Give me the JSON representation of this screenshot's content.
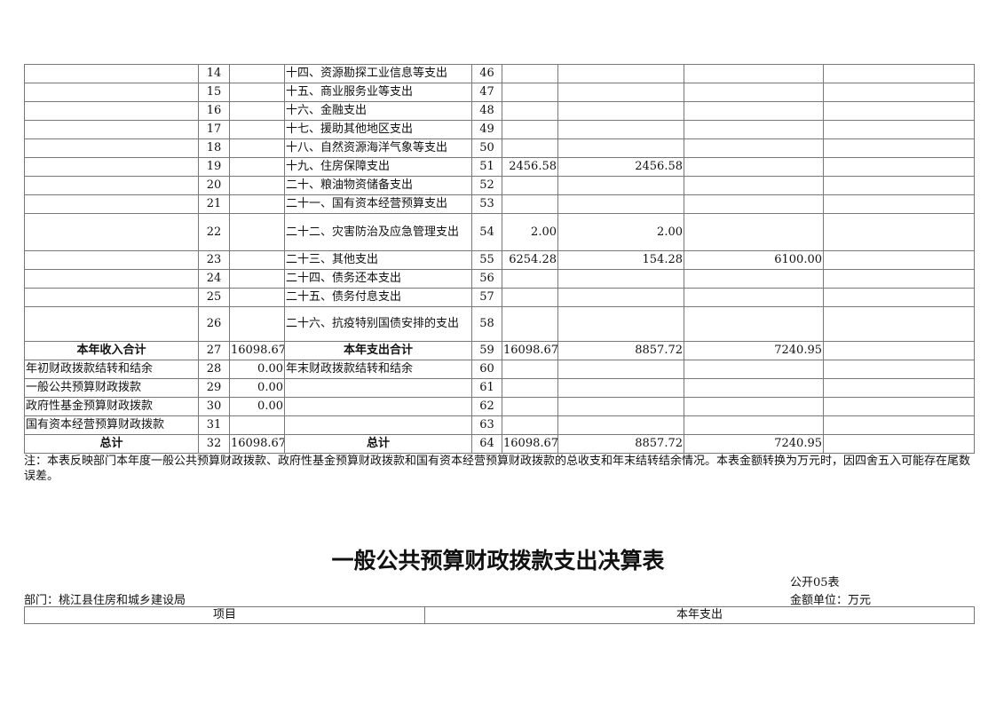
{
  "table1": {
    "rows": [
      {
        "a": "",
        "n1": "14",
        "v1": "",
        "b": "十四、资源勘探工业信息等支出",
        "n2": "46",
        "t": "",
        "g": "",
        "f": "",
        "x": ""
      },
      {
        "a": "",
        "n1": "15",
        "v1": "",
        "b": "十五、商业服务业等支出",
        "n2": "47",
        "t": "",
        "g": "",
        "f": "",
        "x": ""
      },
      {
        "a": "",
        "n1": "16",
        "v1": "",
        "b": "十六、金融支出",
        "n2": "48",
        "t": "",
        "g": "",
        "f": "",
        "x": ""
      },
      {
        "a": "",
        "n1": "17",
        "v1": "",
        "b": "十七、援助其他地区支出",
        "n2": "49",
        "t": "",
        "g": "",
        "f": "",
        "x": ""
      },
      {
        "a": "",
        "n1": "18",
        "v1": "",
        "b": "十八、自然资源海洋气象等支出",
        "n2": "50",
        "t": "",
        "g": "",
        "f": "",
        "x": ""
      },
      {
        "a": "",
        "n1": "19",
        "v1": "",
        "b": "十九、住房保障支出",
        "n2": "51",
        "t": "2456.58",
        "g": "2456.58",
        "f": "",
        "x": ""
      },
      {
        "a": "",
        "n1": "20",
        "v1": "",
        "b": "二十、粮油物资储备支出",
        "n2": "52",
        "t": "",
        "g": "",
        "f": "",
        "x": ""
      },
      {
        "a": "",
        "n1": "21",
        "v1": "",
        "b": "二十一、国有资本经营预算支出",
        "n2": "53",
        "t": "",
        "g": "",
        "f": "",
        "x": ""
      },
      {
        "a": "",
        "n1": "22",
        "v1": "",
        "b": "二十二、灾害防治及应急管理支出",
        "n2": "54",
        "t": "2.00",
        "g": "2.00",
        "f": "",
        "x": "",
        "tall": 42
      },
      {
        "a": "",
        "n1": "23",
        "v1": "",
        "b": "二十三、其他支出",
        "n2": "55",
        "t": "6254.28",
        "g": "154.28",
        "f": "6100.00",
        "x": ""
      },
      {
        "a": "",
        "n1": "24",
        "v1": "",
        "b": "二十四、债务还本支出",
        "n2": "56",
        "t": "",
        "g": "",
        "f": "",
        "x": ""
      },
      {
        "a": "",
        "n1": "25",
        "v1": "",
        "b": "二十五、债务付息支出",
        "n2": "57",
        "t": "",
        "g": "",
        "f": "",
        "x": ""
      },
      {
        "a": "",
        "n1": "26",
        "v1": "",
        "b": "二十六、抗疫特别国债安排的支出",
        "n2": "58",
        "t": "",
        "g": "",
        "f": "",
        "x": "",
        "tall": 39
      },
      {
        "a": "本年收入合计",
        "n1": "27",
        "v1": "16098.67",
        "b": "本年支出合计",
        "n2": "59",
        "t": "16098.67",
        "g": "8857.72",
        "f": "7240.95",
        "x": "",
        "bold": true
      },
      {
        "a": "年初财政拨款结转和结余",
        "n1": "28",
        "v1": "0.00",
        "b": "年末财政拨款结转和结余",
        "n2": "60",
        "t": "",
        "g": "",
        "f": "",
        "x": ""
      },
      {
        "a": "一般公共预算财政拨款",
        "n1": "29",
        "v1": "0.00",
        "b": "",
        "n2": "61",
        "t": "",
        "g": "",
        "f": "",
        "x": ""
      },
      {
        "a": "政府性基金预算财政拨款",
        "n1": "30",
        "v1": "0.00",
        "b": "",
        "n2": "62",
        "t": "",
        "g": "",
        "f": "",
        "x": ""
      },
      {
        "a": "国有资本经营预算财政拨款",
        "n1": "31",
        "v1": "",
        "b": "",
        "n2": "63",
        "t": "",
        "g": "",
        "f": "",
        "x": ""
      },
      {
        "a": "总计",
        "n1": "32",
        "v1": "16098.67",
        "b": "总计",
        "n2": "64",
        "t": "16098.67",
        "g": "8857.72",
        "f": "7240.95",
        "x": "",
        "bold": true
      }
    ]
  },
  "note": "注：本表反映部门本年度一般公共预算财政拨款、政府性基金预算财政拨款和国有资本经营预算财政拨款的总收支和年末结转结余情况。本表金额转换为万元时，因四舍五入可能存在尾数误差。",
  "table2": {
    "title": "一般公共预算财政拨款支出决算表",
    "code": "公开05表",
    "department": "部门：桃江县住房和城乡建设局",
    "unit": "金额单位：万元",
    "headers": [
      "项目",
      "本年支出"
    ]
  }
}
